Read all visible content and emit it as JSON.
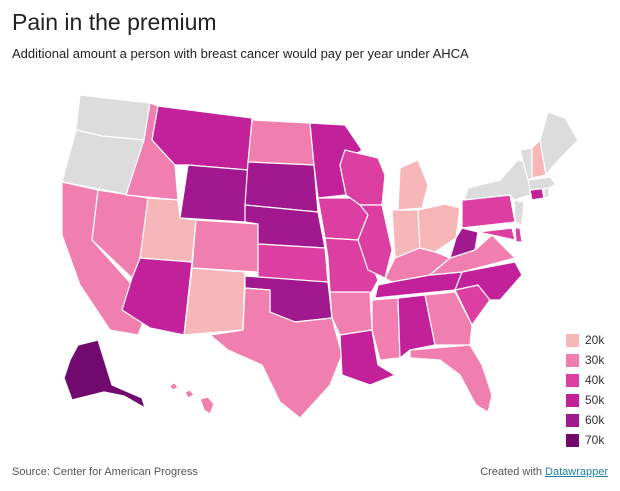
{
  "header": {
    "title": "Pain in the premium",
    "subtitle": "Additional amount a person with breast cancer would pay per year under AHCA"
  },
  "legend": {
    "items": [
      {
        "label": "20k",
        "color": "#f7b6b8"
      },
      {
        "label": "30k",
        "color": "#f07fb0"
      },
      {
        "label": "40k",
        "color": "#dd3ea2"
      },
      {
        "label": "50k",
        "color": "#c3219a"
      },
      {
        "label": "60k",
        "color": "#a2188f"
      },
      {
        "label": "70k",
        "color": "#72096f"
      }
    ]
  },
  "no_data_color": "#dcdcdc",
  "states": {
    "WA": null,
    "OR": null,
    "CA": 30,
    "NV": 30,
    "ID": 30,
    "MT": 50,
    "WY": 60,
    "UT": 20,
    "AZ": 50,
    "CO": 30,
    "NM": 20,
    "ND": 30,
    "SD": 60,
    "NE": 60,
    "KS": 40,
    "OK": 60,
    "TX": 30,
    "MN": 50,
    "IA": 40,
    "MO": 40,
    "AR": 30,
    "LA": 50,
    "WI": 40,
    "IL": 40,
    "MS": 30,
    "MI": 20,
    "IN": 20,
    "OH": 20,
    "KY": 30,
    "TN": 50,
    "AL": 50,
    "GA": 30,
    "FL": 30,
    "SC": 40,
    "NC": 50,
    "VA": 30,
    "WV": 60,
    "MD": 40,
    "DE": 40,
    "PA": 40,
    "NJ": null,
    "NY": null,
    "CT": 50,
    "RI": null,
    "MA": null,
    "VT": null,
    "NH": 20,
    "ME": null,
    "AK": 70,
    "HI": 30
  },
  "footer": {
    "source": "Source: Center for American Progress",
    "created_prefix": "Created with",
    "created_link": "Datawrapper"
  }
}
